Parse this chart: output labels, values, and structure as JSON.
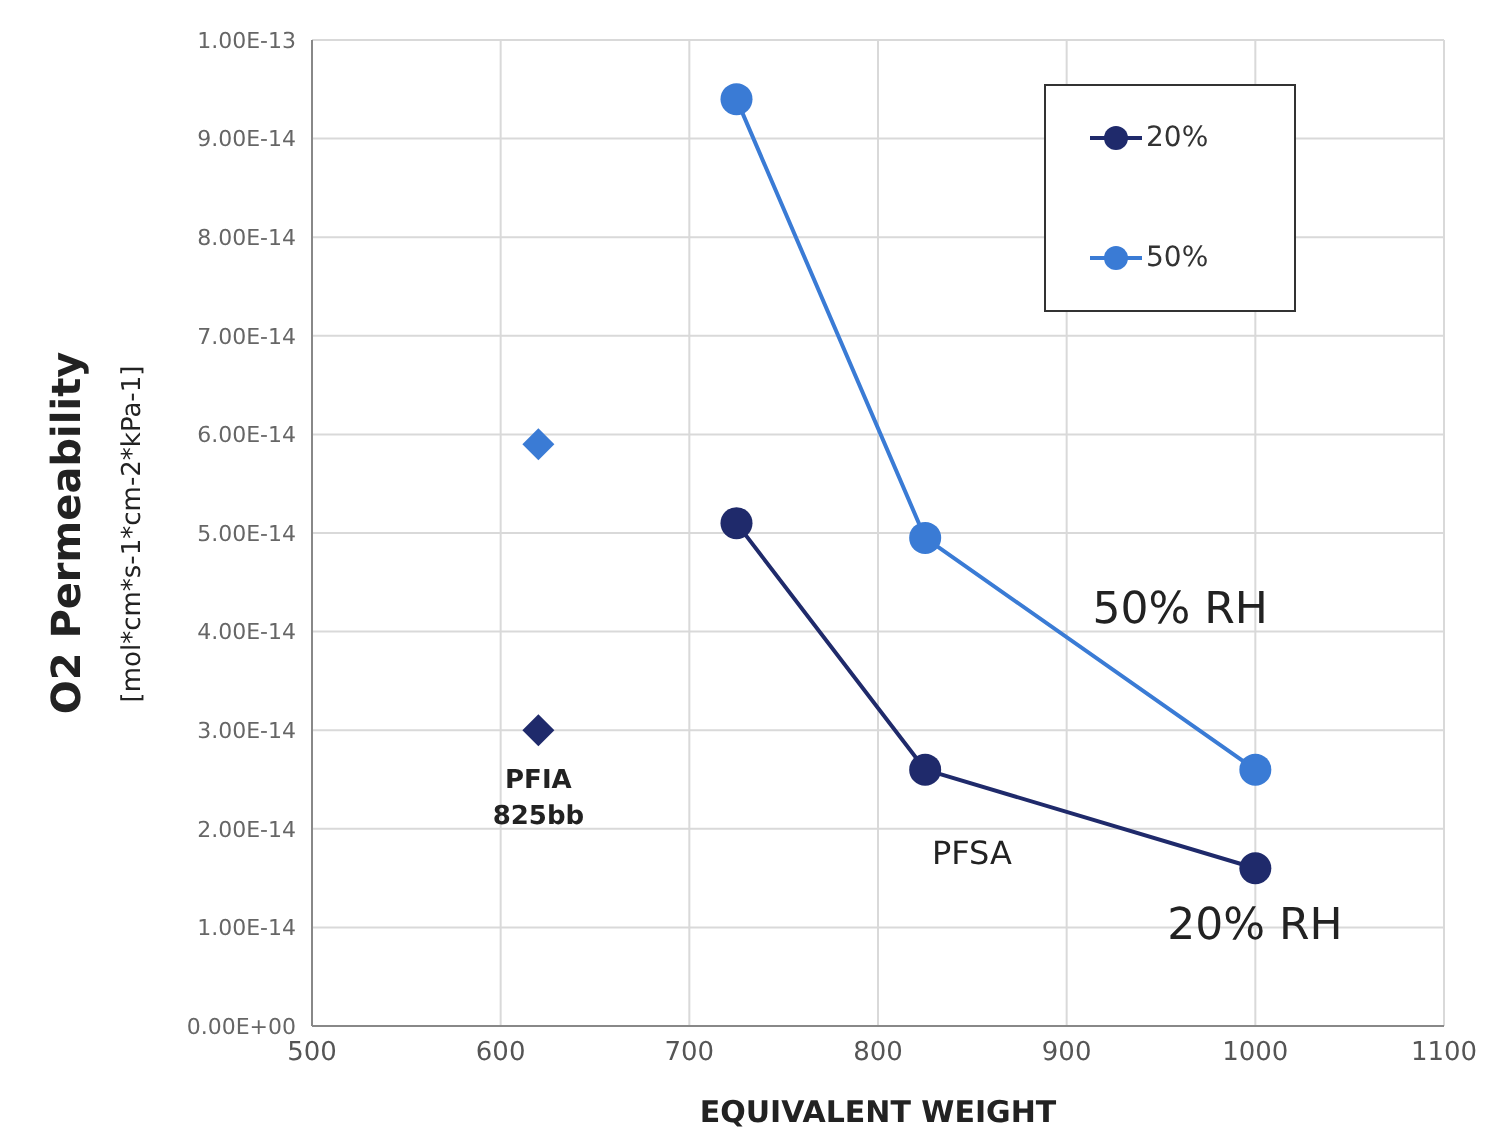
{
  "chart_data": {
    "type": "line",
    "xlabel": "EQUIVALENT WEIGHT",
    "ylabel": "O2 Permeability",
    "series": [
      {
        "name": "20%",
        "color": "#1f2a6b",
        "x": [
          725,
          825,
          1000
        ],
        "values": [
          5.1e-14,
          2.6e-14,
          1.6e-14
        ],
        "marker": "circle"
      },
      {
        "name": "50%",
        "color": "#3a7bd5",
        "x": [
          725,
          825,
          1000
        ],
        "values": [
          9.4e-14,
          4.95e-14,
          2.6e-14
        ],
        "marker": "circle"
      },
      {
        "type": "scatter",
        "color": "#1f2a6b",
        "x": [
          620
        ],
        "values": [
          3e-14
        ],
        "marker": "diamond"
      },
      {
        "type": "scatter",
        "color": "#3a7bd5",
        "x": [
          620
        ],
        "values": [
          5.9e-14
        ],
        "marker": "diamond"
      }
    ],
    "xlim": [
      500,
      1100
    ],
    "xticks": [
      500,
      600,
      700,
      800,
      900,
      1000,
      1100
    ],
    "ylim": [
      0,
      1e-13
    ],
    "yticks": [
      {
        "value": 0,
        "label": "0.00E+00"
      },
      {
        "value": 1e-14,
        "label": "1.00E-14"
      },
      {
        "value": 2e-14,
        "label": "2.00E-14"
      },
      {
        "value": 3e-14,
        "label": "3.00E-14"
      },
      {
        "value": 4e-14,
        "label": "4.00E-14"
      },
      {
        "value": 5e-14,
        "label": "5.00E-14"
      },
      {
        "value": 6e-14,
        "label": "6.00E-14"
      },
      {
        "value": 7e-14,
        "label": "7.00E-14"
      },
      {
        "value": 8e-14,
        "label": "8.00E-14"
      },
      {
        "value": 9e-14,
        "label": "9.00E-14"
      },
      {
        "value": 1e-13,
        "label": "1.00E-13"
      }
    ],
    "annotations": [
      "PFIA 825bb",
      "PFSA",
      "50% RH",
      "20% RH",
      "[mol*cm*s-1*cm-2*kPa-1]"
    ],
    "grid": true,
    "legend": "top right"
  }
}
